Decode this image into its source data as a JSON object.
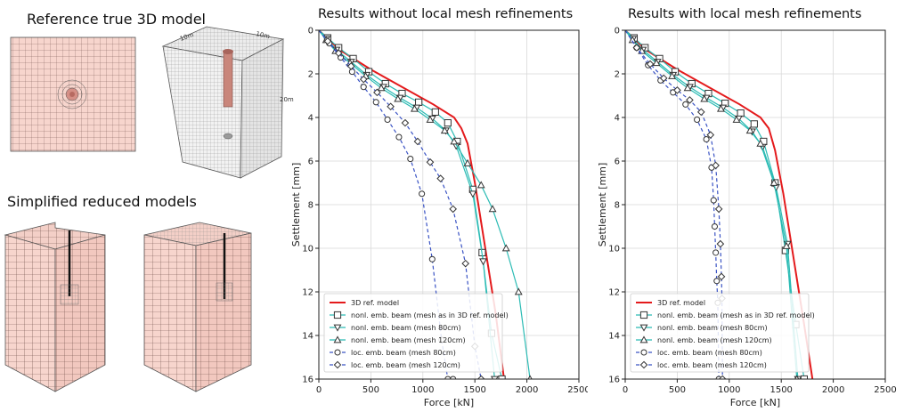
{
  "left_panel": {
    "heading_top": "Reference true 3D model",
    "heading_bottom": "Simplified reduced models",
    "dim_labels": [
      "10m",
      "10m",
      "20m"
    ]
  },
  "legend_labels": [
    "3D ref. model",
    "nonl. emb. beam (mesh as in 3D ref. model)",
    "nonl. emb. beam (mesh 80cm)",
    "nonl. emb. beam (mesh 120cm)",
    "loc. emb. beam (mesh 80cm)",
    "loc. emb. beam (mesh 120cm)"
  ],
  "chart_data": [
    {
      "type": "line",
      "title": "Results without local mesh refinements",
      "xlabel": "Force [kN]",
      "ylabel": "Settlement [mm]",
      "xlim": [
        0,
        2500
      ],
      "ylim": [
        16,
        0
      ],
      "xticks": [
        0,
        500,
        1000,
        1500,
        2000,
        2500
      ],
      "yticks": [
        0,
        2,
        4,
        6,
        8,
        10,
        12,
        14,
        16
      ],
      "grid": true,
      "legend_position": "lower-left",
      "series": [
        {
          "name": "3D ref. model",
          "color": "#e41a1c",
          "dash": "solid",
          "marker": "none",
          "x": [
            0,
            200,
            500,
            800,
            1100,
            1300,
            1370,
            1430,
            1500,
            1600,
            1700,
            1780
          ],
          "y": [
            0,
            0.9,
            1.8,
            2.6,
            3.4,
            4.0,
            4.5,
            5.2,
            7.0,
            10.0,
            13.0,
            16.0
          ]
        },
        {
          "name": "nonl. emb. beam (mesh as in 3D ref. model)",
          "color": "#2bbbb4",
          "dash": "solid",
          "marker": "square",
          "x": [
            0,
            85,
            190,
            330,
            480,
            640,
            800,
            960,
            1120,
            1240,
            1330,
            1480,
            1570,
            1660,
            1760
          ],
          "y": [
            0,
            0.35,
            0.8,
            1.3,
            1.9,
            2.45,
            2.9,
            3.3,
            3.75,
            4.25,
            5.1,
            7.3,
            10.2,
            13.9,
            16.0
          ]
        },
        {
          "name": "nonl. emb. beam (mesh 80cm)",
          "color": "#2bbbb4",
          "dash": "solid",
          "marker": "triangle-down",
          "x": [
            0,
            75,
            170,
            310,
            460,
            620,
            780,
            940,
            1090,
            1220,
            1320,
            1480,
            1580,
            1690
          ],
          "y": [
            0,
            0.4,
            0.9,
            1.45,
            2.05,
            2.6,
            3.1,
            3.55,
            4.05,
            4.6,
            5.3,
            7.5,
            10.6,
            16.0
          ]
        },
        {
          "name": "nonl. emb. beam (mesh 120cm)",
          "color": "#2bbbb4",
          "dash": "solid",
          "marker": "triangle-up",
          "x": [
            0,
            70,
            160,
            300,
            450,
            600,
            760,
            920,
            1070,
            1210,
            1300,
            1430,
            1560,
            1670,
            1800,
            1920,
            2030
          ],
          "y": [
            0,
            0.45,
            0.95,
            1.5,
            2.1,
            2.65,
            3.15,
            3.6,
            4.1,
            4.6,
            5.1,
            6.1,
            7.1,
            8.2,
            10.0,
            12.0,
            16.0
          ]
        },
        {
          "name": "loc. emb. beam (mesh 80cm)",
          "color": "#3a53c4",
          "dash": "dashed",
          "marker": "circle",
          "x": [
            0,
            100,
            210,
            320,
            430,
            550,
            660,
            770,
            880,
            990,
            1090,
            1180,
            1240,
            1290
          ],
          "y": [
            0,
            0.6,
            1.25,
            1.9,
            2.6,
            3.3,
            4.1,
            4.9,
            5.9,
            7.5,
            10.5,
            14.2,
            16.0,
            16.0
          ]
        },
        {
          "name": "loc. emb. beam (mesh 120cm)",
          "color": "#3a53c4",
          "dash": "dashed",
          "marker": "diamond",
          "x": [
            0,
            85,
            190,
            310,
            430,
            560,
            690,
            830,
            950,
            1070,
            1170,
            1290,
            1410,
            1500,
            1560
          ],
          "y": [
            0,
            0.5,
            1.05,
            1.65,
            2.25,
            2.85,
            3.5,
            4.25,
            5.1,
            6.05,
            6.8,
            8.2,
            10.7,
            14.5,
            16.0
          ]
        }
      ]
    },
    {
      "type": "line",
      "title": "Results with local mesh refinements",
      "xlabel": "Force [kN]",
      "ylabel": "Settlement [mm]",
      "xlim": [
        0,
        2500
      ],
      "ylim": [
        16,
        0
      ],
      "xticks": [
        0,
        500,
        1000,
        1500,
        2000,
        2500
      ],
      "yticks": [
        0,
        2,
        4,
        6,
        8,
        10,
        12,
        14,
        16
      ],
      "grid": true,
      "legend_position": "lower-left",
      "series": [
        {
          "name": "3D ref. model",
          "color": "#e41a1c",
          "dash": "solid",
          "marker": "none",
          "x": [
            0,
            200,
            500,
            800,
            1100,
            1300,
            1380,
            1440,
            1520,
            1620,
            1720,
            1800
          ],
          "y": [
            0,
            0.9,
            1.8,
            2.6,
            3.4,
            4.0,
            4.5,
            5.5,
            7.5,
            10.5,
            13.5,
            16.0
          ]
        },
        {
          "name": "nonl. emb. beam (mesh as in 3D ref. model)",
          "color": "#2bbbb4",
          "dash": "solid",
          "marker": "square",
          "x": [
            0,
            85,
            190,
            330,
            480,
            640,
            800,
            960,
            1110,
            1240,
            1330,
            1440,
            1540,
            1640,
            1720
          ],
          "y": [
            0,
            0.35,
            0.8,
            1.3,
            1.9,
            2.45,
            2.9,
            3.35,
            3.8,
            4.3,
            5.1,
            7.0,
            10.1,
            13.5,
            16.0
          ]
        },
        {
          "name": "nonl. emb. beam (mesh 80cm)",
          "color": "#2bbbb4",
          "dash": "solid",
          "marker": "triangle-down",
          "x": [
            0,
            75,
            170,
            310,
            460,
            620,
            780,
            940,
            1090,
            1220,
            1320,
            1450,
            1560,
            1660
          ],
          "y": [
            0,
            0.4,
            0.9,
            1.45,
            2.05,
            2.6,
            3.1,
            3.55,
            4.05,
            4.65,
            5.35,
            7.2,
            9.8,
            16.0
          ]
        },
        {
          "name": "nonl. emb. beam (mesh 120cm)",
          "color": "#2bbbb4",
          "dash": "solid",
          "marker": "triangle-up",
          "x": [
            0,
            70,
            160,
            300,
            450,
            600,
            760,
            920,
            1070,
            1200,
            1300,
            1430,
            1550,
            1650
          ],
          "y": [
            0,
            0.45,
            0.95,
            1.5,
            2.1,
            2.65,
            3.15,
            3.6,
            4.1,
            4.6,
            5.2,
            7.0,
            9.9,
            16.0
          ]
        },
        {
          "name": "loc. emb. beam (mesh 80cm)",
          "color": "#3a53c4",
          "dash": "dashed",
          "marker": "circle",
          "x": [
            0,
            110,
            220,
            340,
            460,
            580,
            690,
            780,
            830,
            850,
            860,
            870,
            880,
            890,
            900
          ],
          "y": [
            0,
            0.8,
            1.6,
            2.3,
            2.85,
            3.4,
            4.1,
            5.0,
            6.3,
            7.8,
            9.0,
            10.2,
            11.5,
            12.5,
            16.0
          ]
        },
        {
          "name": "loc. emb. beam (mesh 120cm)",
          "color": "#3a53c4",
          "dash": "dashed",
          "marker": "diamond",
          "x": [
            0,
            110,
            240,
            370,
            500,
            620,
            730,
            820,
            870,
            900,
            915,
            925,
            930,
            935
          ],
          "y": [
            0,
            0.8,
            1.55,
            2.2,
            2.75,
            3.2,
            3.75,
            4.8,
            6.2,
            8.2,
            9.8,
            11.3,
            12.3,
            16.0
          ]
        }
      ]
    }
  ]
}
